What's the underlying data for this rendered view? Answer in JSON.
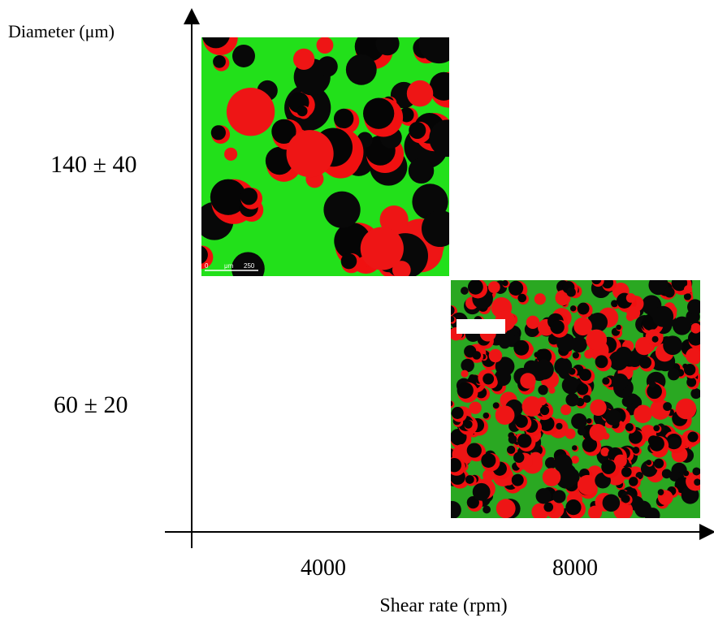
{
  "axes": {
    "y_label": "Diameter (μm)",
    "x_label": "Shear rate (rpm)"
  },
  "y_groups": [
    "140 ± 40",
    "60 ± 20"
  ],
  "x_groups": [
    "4000",
    "8000"
  ],
  "images": [
    {
      "scale_bar": [
        "0",
        "μm",
        "250"
      ]
    }
  ]
}
